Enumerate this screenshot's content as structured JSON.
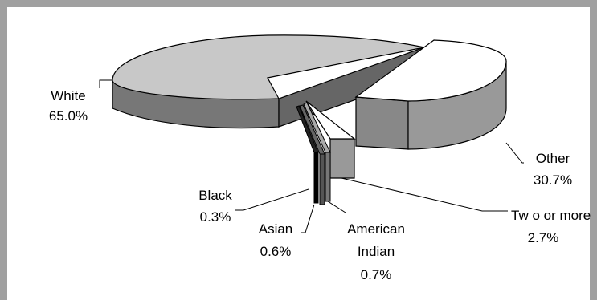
{
  "chart_data": {
    "type": "pie",
    "variant": "3d-exploded",
    "title": "",
    "slices": [
      {
        "label": "White",
        "value": 65.0,
        "display": "65.0%",
        "color": "#c8c8c8",
        "side_color": "#777777"
      },
      {
        "label": "Other",
        "value": 30.7,
        "display": "30.7%",
        "color": "#ffffff",
        "side_color": "#999999"
      },
      {
        "label": "Two or more",
        "value": 2.7,
        "display": "2.7%",
        "color": "#ffffff",
        "side_color": "#999999"
      },
      {
        "label": "American Indian",
        "value": 0.7,
        "display": "0.7%",
        "color": "#aaaaaa",
        "side_color": "#666666"
      },
      {
        "label": "Asian",
        "value": 0.6,
        "display": "0.6%",
        "color": "#555555",
        "side_color": "#333333"
      },
      {
        "label": "Black",
        "value": 0.3,
        "display": "0.3%",
        "color": "#000000",
        "side_color": "#000000"
      }
    ],
    "labels": {
      "white": {
        "name": "White",
        "pct": "65.0%"
      },
      "other": {
        "name": "Other",
        "pct": "30.7%"
      },
      "two_or_more": {
        "name": "Tw o or more",
        "pct": "2.7%"
      },
      "american_indian": {
        "name_line1": "American",
        "name_line2": "Indian",
        "pct": "0.7%"
      },
      "asian": {
        "name": "Asian",
        "pct": "0.6%"
      },
      "black": {
        "name": "Black",
        "pct": "0.3%"
      }
    }
  }
}
